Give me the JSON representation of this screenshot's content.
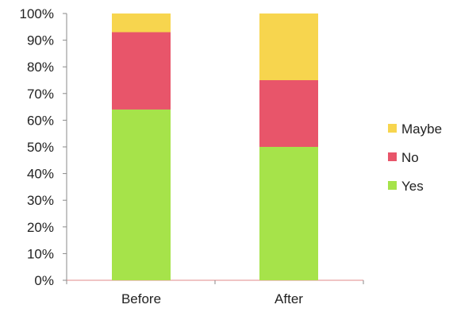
{
  "chart_data": {
    "type": "bar",
    "stacked": true,
    "categories": [
      "Before",
      "After"
    ],
    "series": [
      {
        "name": "Yes",
        "values": [
          64,
          50
        ],
        "color": "#a6e34a"
      },
      {
        "name": "No",
        "values": [
          29,
          25
        ],
        "color": "#e8556a"
      },
      {
        "name": "Maybe",
        "values": [
          7,
          25
        ],
        "color": "#f7d54e"
      }
    ],
    "ylim": [
      0,
      100
    ],
    "yticks": [
      "0%",
      "10%",
      "20%",
      "30%",
      "40%",
      "50%",
      "60%",
      "70%",
      "80%",
      "90%",
      "100%"
    ],
    "grid": false,
    "legend_position": "right",
    "legend_order": [
      "Maybe",
      "No",
      "Yes"
    ],
    "title": "",
    "xlabel": "",
    "ylabel": ""
  }
}
